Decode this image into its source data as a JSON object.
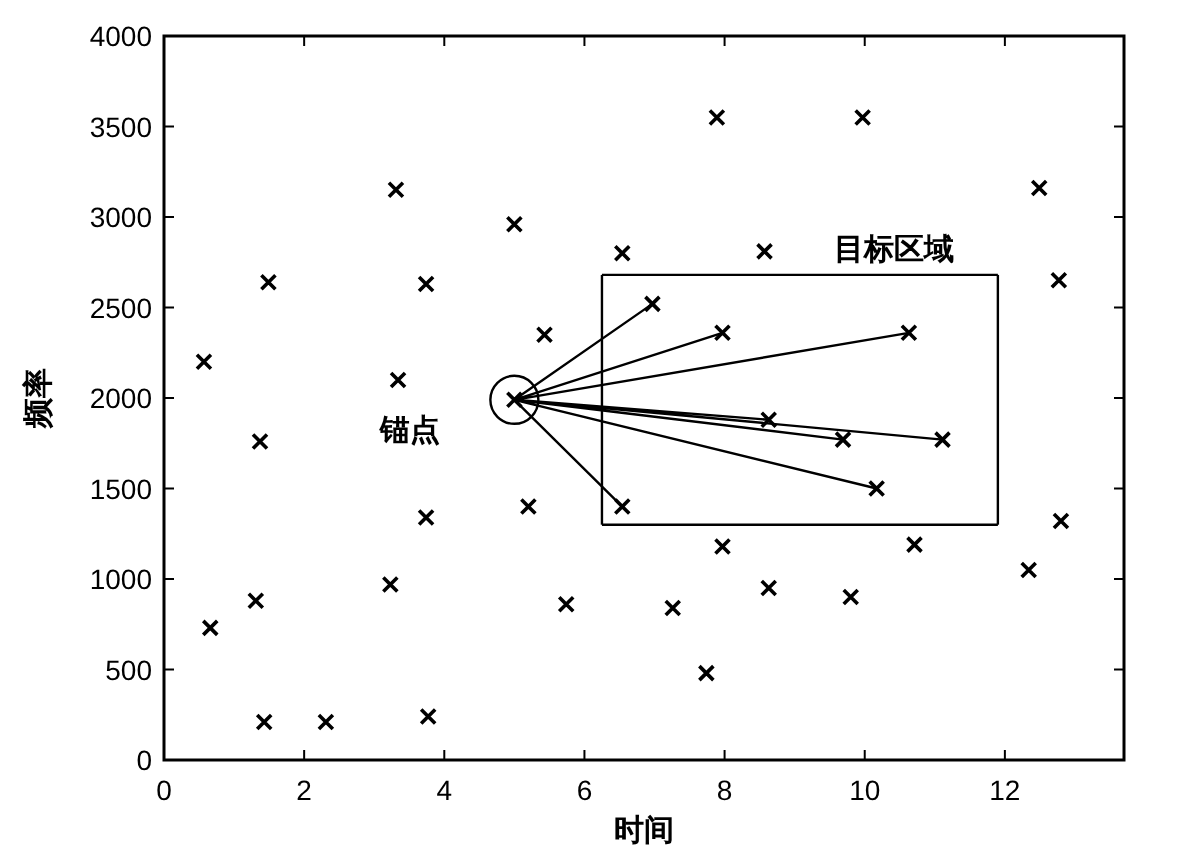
{
  "chart_data": {
    "type": "scatter",
    "xlabel": "时间",
    "ylabel": "频率",
    "xlim": [
      0,
      13.7
    ],
    "ylim": [
      0,
      4000
    ],
    "xticks": [
      0,
      2,
      4,
      6,
      8,
      10,
      12
    ],
    "yticks": [
      0,
      500,
      1000,
      1500,
      2000,
      2500,
      3000,
      3500,
      4000
    ],
    "grid": false,
    "legend": false,
    "series": [
      {
        "type": "scatter",
        "marker": "cross",
        "color": "#000000",
        "x": [
          0.57,
          0.66,
          1.49,
          1.37,
          1.31,
          1.43,
          2.31,
          3.31,
          3.34,
          3.23,
          3.74,
          3.74,
          3.77,
          5.0,
          5.0,
          5.43,
          5.2,
          5.74,
          6.54,
          6.54,
          6.97,
          7.97,
          7.26,
          7.74,
          7.89,
          7.97,
          8.57,
          8.63,
          8.63,
          9.69,
          9.8,
          9.97,
          10.63,
          10.17,
          10.71,
          11.11,
          12.34,
          12.49,
          12.77,
          12.8
        ],
        "values": [
          2200,
          730,
          2640,
          1760,
          880,
          210,
          210,
          3150,
          2100,
          970,
          2630,
          1340,
          240,
          2960,
          1990,
          2350,
          1400,
          860,
          2800,
          1400,
          2520,
          2360,
          840,
          480,
          3550,
          1180,
          2810,
          1880,
          950,
          1770,
          900,
          3550,
          2360,
          1500,
          1190,
          1770,
          1050,
          3160,
          2650,
          1320
        ]
      },
      {
        "type": "line",
        "marker": "none",
        "color": "#000000",
        "x": [
          5.0,
          6.97,
          null,
          5.0,
          7.97,
          null,
          5.0,
          10.63,
          null,
          5.0,
          8.63,
          null,
          5.0,
          9.69,
          null,
          5.0,
          11.11,
          null,
          5.0,
          10.17,
          null,
          5.0,
          6.54
        ],
        "values": [
          1990,
          2520,
          null,
          1990,
          2360,
          null,
          1990,
          2360,
          null,
          1990,
          1880,
          null,
          1990,
          1770,
          null,
          1990,
          1770,
          null,
          1990,
          1500,
          null,
          1990,
          1400
        ]
      },
      {
        "type": "line",
        "marker": "none",
        "color": "#000000",
        "x": [
          6.25,
          11.9
        ],
        "values": [
          2680,
          2680
        ]
      },
      {
        "type": "line",
        "marker": "none",
        "color": "#000000",
        "x": [
          6.25,
          11.9
        ],
        "values": [
          1300,
          1300
        ]
      },
      {
        "type": "line",
        "marker": "none",
        "color": "#000000",
        "x": [
          6.25,
          6.25
        ],
        "values": [
          1300,
          2680
        ]
      },
      {
        "type": "line",
        "marker": "none",
        "color": "#000000",
        "x": [
          11.9,
          11.9
        ],
        "values": [
          1300,
          2680
        ]
      }
    ],
    "annotations": [
      {
        "text": "锚点",
        "x": 5.0,
        "y": 1990
      },
      {
        "text": "目标区域",
        "x": 11.9,
        "y": 2680
      }
    ]
  }
}
